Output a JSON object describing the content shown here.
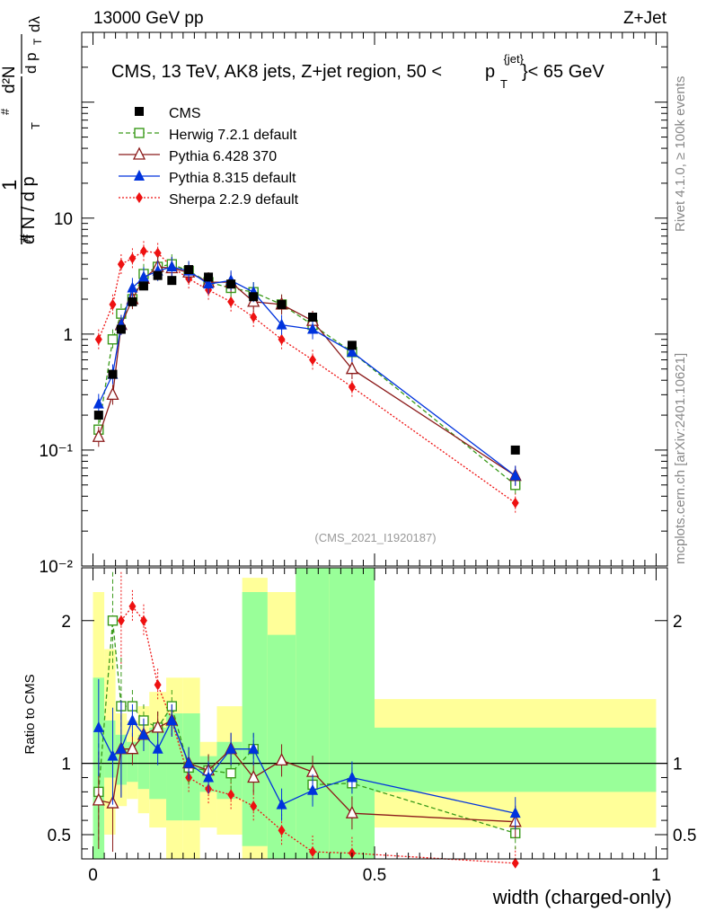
{
  "header": {
    "energy_label": "13000 GeV pp",
    "process_label": "Z+Jet",
    "title_main": "CMS, 13 TeV, AK8 jets, Z+jet region, 50 <",
    "title_p": "p",
    "title_sup": "{jet}",
    "title_sub": "T",
    "title_end": "}< 65 GeV"
  },
  "side_labels": {
    "rivet": "Rivet 4.1.0, ≥ 100k events",
    "mcplots": "mcplots.cern.ch [arXiv:2401.10621]"
  },
  "analysis_id": "(CMS_2021_I1920187)",
  "y_axis_label": {
    "hash1": "#",
    "one": "1",
    "dN": "d N / d p",
    "T1": "T",
    "hash2": "#",
    "d2N": "d²N",
    "dpT": "d p",
    "T2": "T",
    "dlambda": "dλ"
  },
  "ratio_ylabel": "Ratio to CMS",
  "x_axis_label": "width (charged-only)",
  "colors": {
    "cms": "#000000",
    "herwig": "#3a9a1a",
    "pythia6": "#8b1a1a",
    "pythia8": "#0033dd",
    "sherpa": "#ee1111",
    "band_yellow": "#ffff99",
    "band_green": "#99ff99"
  },
  "chart_data": [
    {
      "type": "scatter",
      "panel": "main",
      "yscale": "log",
      "xlim": [
        -0.02,
        1.02
      ],
      "ylim": [
        0.01,
        400
      ],
      "yticks": [
        {
          "v": 0.01,
          "label": "10⁻²"
        },
        {
          "v": 0.1,
          "label": "10⁻¹"
        },
        {
          "v": 1,
          "label": "1"
        },
        {
          "v": 10,
          "label": "10"
        }
      ],
      "x": [
        0.01,
        0.035,
        0.05,
        0.07,
        0.09,
        0.115,
        0.14,
        0.17,
        0.205,
        0.245,
        0.285,
        0.335,
        0.39,
        0.46,
        0.75
      ],
      "series": [
        {
          "name": "CMS",
          "key": "cms",
          "marker": "square",
          "line": "none",
          "values": [
            0.2,
            0.45,
            1.1,
            1.9,
            2.6,
            3.2,
            2.9,
            3.6,
            3.1,
            2.7,
            2.1,
            1.8,
            1.4,
            0.8,
            0.1
          ]
        },
        {
          "name": "Herwig 7.2.1 default",
          "key": "herwig",
          "marker": "open-square",
          "line": "dashed",
          "values": [
            0.15,
            0.9,
            1.5,
            2.0,
            3.3,
            3.8,
            4.0,
            3.5,
            2.8,
            2.5,
            2.3,
            1.8,
            1.2,
            0.7,
            0.05
          ]
        },
        {
          "name": "Pythia 6.428 370",
          "key": "pythia6",
          "marker": "open-triangle",
          "line": "solid",
          "values": [
            0.13,
            0.3,
            1.2,
            2.0,
            3.0,
            3.8,
            3.7,
            3.4,
            2.8,
            2.8,
            1.9,
            1.8,
            1.3,
            0.5,
            0.06
          ]
        },
        {
          "name": "Pythia 8.315 default",
          "key": "pythia8",
          "marker": "triangle",
          "line": "solid",
          "values": [
            0.25,
            0.45,
            1.2,
            2.5,
            3.1,
            3.5,
            3.8,
            3.5,
            2.7,
            2.9,
            2.3,
            1.2,
            1.1,
            0.7,
            0.06
          ]
        },
        {
          "name": "Sherpa 2.2.9 default",
          "key": "sherpa",
          "marker": "diamond",
          "line": "dotted",
          "values": [
            0.9,
            1.8,
            4.0,
            4.5,
            5.2,
            5.0,
            3.8,
            3.0,
            2.4,
            1.9,
            1.4,
            0.9,
            0.6,
            0.35,
            0.035
          ]
        }
      ]
    },
    {
      "type": "scatter",
      "panel": "ratio",
      "ylabel": "Ratio to CMS",
      "xlabel": "width (charged-only)",
      "xlim": [
        -0.02,
        1.02
      ],
      "ylim": [
        0.33,
        2.37
      ],
      "yticks": [
        0.5,
        1,
        2
      ],
      "xticks": [
        {
          "v": 0,
          "label": "0"
        },
        {
          "v": 0.5,
          "label": "0.5"
        },
        {
          "v": 1,
          "label": "1"
        }
      ],
      "x": [
        0.01,
        0.035,
        0.05,
        0.07,
        0.09,
        0.115,
        0.14,
        0.17,
        0.205,
        0.245,
        0.285,
        0.335,
        0.39,
        0.46,
        0.75
      ],
      "bands": [
        {
          "x0": 0.0,
          "x1": 0.02,
          "y_lo": 0.33,
          "y_hi": 2.2,
          "g_lo": 0.33,
          "g_hi": 1.6
        },
        {
          "x0": 0.02,
          "x1": 0.04,
          "y_lo": 0.5,
          "y_hi": 1.8,
          "g_lo": 0.9,
          "g_hi": 1.3
        },
        {
          "x0": 0.04,
          "x1": 0.06,
          "y_lo": 0.7,
          "y_hi": 1.35,
          "g_lo": 0.85,
          "g_hi": 1.2
        },
        {
          "x0": 0.06,
          "x1": 0.08,
          "y_lo": 0.75,
          "y_hi": 1.3,
          "g_lo": 0.87,
          "g_hi": 1.15
        },
        {
          "x0": 0.08,
          "x1": 0.1,
          "y_lo": 0.65,
          "y_hi": 1.4,
          "g_lo": 0.82,
          "g_hi": 1.2
        },
        {
          "x0": 0.1,
          "x1": 0.13,
          "y_lo": 0.55,
          "y_hi": 1.5,
          "g_lo": 0.75,
          "g_hi": 1.25
        },
        {
          "x0": 0.13,
          "x1": 0.16,
          "y_lo": 0.33,
          "y_hi": 1.6,
          "g_lo": 0.6,
          "g_hi": 1.35
        },
        {
          "x0": 0.16,
          "x1": 0.19,
          "y_lo": 0.33,
          "y_hi": 1.6,
          "g_lo": 0.6,
          "g_hi": 1.35
        },
        {
          "x0": 0.19,
          "x1": 0.22,
          "y_lo": 0.55,
          "y_hi": 1.15,
          "g_lo": 0.8,
          "g_hi": 1.05
        },
        {
          "x0": 0.22,
          "x1": 0.265,
          "y_lo": 0.5,
          "y_hi": 1.4,
          "g_lo": 0.75,
          "g_hi": 1.15
        },
        {
          "x0": 0.265,
          "x1": 0.31,
          "y_lo": 0.33,
          "y_hi": 2.3,
          "g_lo": 0.42,
          "g_hi": 2.2
        },
        {
          "x0": 0.31,
          "x1": 0.36,
          "y_lo": 0.33,
          "y_hi": 2.2,
          "g_lo": 0.33,
          "g_hi": 1.9
        },
        {
          "x0": 0.36,
          "x1": 0.42,
          "y_lo": 0.33,
          "y_hi": 2.37,
          "g_lo": 0.33,
          "g_hi": 2.37
        },
        {
          "x0": 0.42,
          "x1": 0.5,
          "y_lo": 0.33,
          "y_hi": 2.37,
          "g_lo": 0.33,
          "g_hi": 2.37
        },
        {
          "x0": 0.5,
          "x1": 1.0,
          "y_lo": 0.55,
          "y_hi": 1.45,
          "g_lo": 0.8,
          "g_hi": 1.25
        }
      ],
      "series": [
        {
          "name": "Herwig 7.2.1 default",
          "key": "herwig",
          "values": [
            0.8,
            2.0,
            1.4,
            1.4,
            1.3,
            1.25,
            1.4,
            0.97,
            0.95,
            0.93,
            1.1,
            null,
            0.85,
            0.86,
            0.51
          ]
        },
        {
          "name": "Pythia 6.428 370",
          "key": "pythia6",
          "values": [
            0.74,
            0.72,
            1.1,
            1.1,
            1.2,
            1.25,
            1.3,
            1.0,
            0.95,
            1.1,
            0.9,
            1.02,
            0.94,
            0.65,
            0.59
          ]
        },
        {
          "name": "Pythia 8.315 default",
          "key": "pythia8",
          "values": [
            1.25,
            1.05,
            1.1,
            1.3,
            1.2,
            1.1,
            1.3,
            1.0,
            0.9,
            1.1,
            1.1,
            0.71,
            0.81,
            0.9,
            0.65
          ]
        },
        {
          "name": "Sherpa 2.2.9 default",
          "key": "sherpa",
          "values": [
            null,
            null,
            2.0,
            2.1,
            2.0,
            1.55,
            1.3,
            0.9,
            0.82,
            0.78,
            0.7,
            0.53,
            0.38,
            0.37,
            0.3
          ]
        }
      ]
    }
  ]
}
